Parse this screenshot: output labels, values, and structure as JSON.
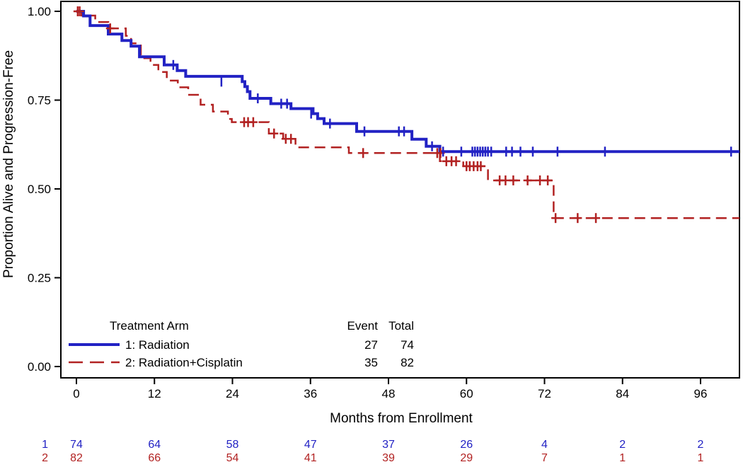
{
  "chart_data": {
    "type": "line",
    "subtype": "kaplan-meier-step",
    "title": "",
    "xlabel": "Months from Enrollment",
    "ylabel": "Proportion Alive and Progression-Free",
    "xlim": [
      0,
      102
    ],
    "ylim": [
      0.0,
      1.0
    ],
    "xticks": [
      0,
      12,
      24,
      36,
      48,
      60,
      72,
      84,
      96
    ],
    "ytick_labels": [
      "0.00",
      "0.25",
      "0.50",
      "0.75",
      "1.00"
    ],
    "ytick_values": [
      0.0,
      0.25,
      0.5,
      0.75,
      1.0
    ],
    "grid": false,
    "legend": {
      "title": "Treatment Arm",
      "event_header": "Event",
      "total_header": "Total",
      "position": "bottom-left-inside"
    },
    "series": [
      {
        "name": "1: Radiation",
        "color": "#2222C4",
        "style": "solid",
        "event": 27,
        "total": 74,
        "steps": [
          [
            0,
            1.0
          ],
          [
            1.1,
            0.987
          ],
          [
            2.1,
            0.96
          ],
          [
            4.9,
            0.936
          ],
          [
            7.0,
            0.918
          ],
          [
            8.4,
            0.902
          ],
          [
            9.7,
            0.872
          ],
          [
            13.5,
            0.849
          ],
          [
            15.5,
            0.833
          ],
          [
            16.8,
            0.817
          ],
          [
            25.5,
            0.802
          ],
          [
            25.9,
            0.788
          ],
          [
            26.3,
            0.774
          ],
          [
            26.7,
            0.755
          ],
          [
            29.9,
            0.74
          ],
          [
            33.0,
            0.726
          ],
          [
            36.4,
            0.712
          ],
          [
            37.1,
            0.698
          ],
          [
            38.1,
            0.684
          ],
          [
            43.1,
            0.662
          ],
          [
            51.6,
            0.64
          ],
          [
            53.8,
            0.62
          ],
          [
            55.9,
            0.605
          ],
          [
            102,
            0.605
          ]
        ],
        "censors": [
          [
            14.9,
            0.849
          ],
          [
            22.3,
            0.802
          ],
          [
            27.9,
            0.755
          ],
          [
            31.5,
            0.74
          ],
          [
            32.4,
            0.74
          ],
          [
            36.1,
            0.712
          ],
          [
            39.0,
            0.684
          ],
          [
            44.3,
            0.662
          ],
          [
            49.6,
            0.662
          ],
          [
            50.4,
            0.662
          ],
          [
            54.7,
            0.62
          ],
          [
            56.4,
            0.605
          ],
          [
            59.2,
            0.605
          ],
          [
            60.9,
            0.605
          ],
          [
            61.3,
            0.605
          ],
          [
            61.7,
            0.605
          ],
          [
            62.1,
            0.605
          ],
          [
            62.5,
            0.605
          ],
          [
            62.9,
            0.605
          ],
          [
            63.3,
            0.605
          ],
          [
            63.8,
            0.605
          ],
          [
            66.1,
            0.605
          ],
          [
            67.0,
            0.605
          ],
          [
            68.3,
            0.605
          ],
          [
            70.2,
            0.605
          ],
          [
            74.0,
            0.605
          ],
          [
            81.3,
            0.605
          ],
          [
            100.7,
            0.605
          ]
        ]
      },
      {
        "name": "2: Radiation+Cisplatin",
        "color": "#B22222",
        "style": "dashed",
        "event": 35,
        "total": 82,
        "steps": [
          [
            0,
            1.0
          ],
          [
            0.8,
            0.988
          ],
          [
            2.9,
            0.97
          ],
          [
            4.9,
            0.952
          ],
          [
            7.6,
            0.931
          ],
          [
            8.4,
            0.91
          ],
          [
            9.9,
            0.868
          ],
          [
            11.4,
            0.849
          ],
          [
            12.6,
            0.829
          ],
          [
            13.9,
            0.805
          ],
          [
            15.6,
            0.786
          ],
          [
            17.2,
            0.765
          ],
          [
            19.1,
            0.737
          ],
          [
            21.0,
            0.718
          ],
          [
            23.3,
            0.697
          ],
          [
            23.9,
            0.688
          ],
          [
            29.6,
            0.656
          ],
          [
            31.8,
            0.641
          ],
          [
            33.7,
            0.617
          ],
          [
            41.9,
            0.601
          ],
          [
            55.9,
            0.578
          ],
          [
            59.5,
            0.564
          ],
          [
            63.3,
            0.524
          ],
          [
            73.4,
            0.418
          ],
          [
            102,
            0.418
          ]
        ],
        "censors": [
          [
            0.2,
            1.0
          ],
          [
            0.5,
            1.0
          ],
          [
            5.2,
            0.952
          ],
          [
            25.8,
            0.688
          ],
          [
            26.4,
            0.688
          ],
          [
            27.2,
            0.688
          ],
          [
            30.4,
            0.656
          ],
          [
            32.2,
            0.641
          ],
          [
            33.0,
            0.641
          ],
          [
            44.1,
            0.601
          ],
          [
            55.5,
            0.601
          ],
          [
            56.0,
            0.601
          ],
          [
            56.9,
            0.578
          ],
          [
            57.7,
            0.578
          ],
          [
            58.4,
            0.578
          ],
          [
            60.0,
            0.564
          ],
          [
            60.5,
            0.564
          ],
          [
            61.1,
            0.564
          ],
          [
            61.7,
            0.564
          ],
          [
            62.2,
            0.564
          ],
          [
            65.1,
            0.524
          ],
          [
            66.0,
            0.524
          ],
          [
            67.2,
            0.524
          ],
          [
            69.4,
            0.524
          ],
          [
            71.3,
            0.524
          ],
          [
            72.5,
            0.524
          ],
          [
            73.7,
            0.418
          ],
          [
            77.1,
            0.418
          ],
          [
            79.9,
            0.418
          ]
        ]
      }
    ],
    "risk_table": {
      "months": [
        0,
        12,
        24,
        36,
        48,
        60,
        72,
        84,
        96
      ],
      "rows": [
        {
          "label": "1",
          "color": "#2222C4",
          "counts": [
            74,
            64,
            58,
            47,
            37,
            26,
            4,
            2,
            2
          ]
        },
        {
          "label": "2",
          "color": "#B22222",
          "counts": [
            82,
            66,
            54,
            41,
            39,
            29,
            7,
            1,
            1
          ]
        }
      ]
    }
  }
}
